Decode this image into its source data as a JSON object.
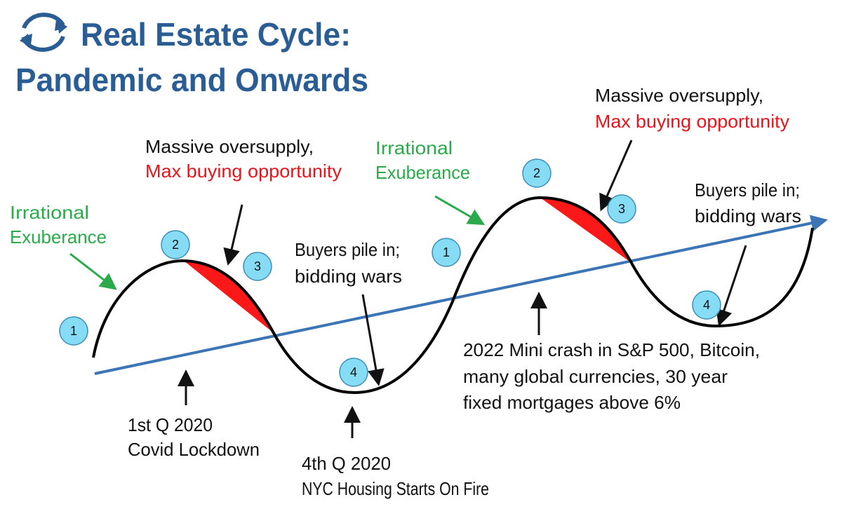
{
  "header": {
    "title": [
      "Real Estate Cycle:",
      "Pandemic and Onwards"
    ]
  },
  "cycles": [
    {
      "exuberance": [
        "Irrational",
        "Exuberance"
      ],
      "oversupply": "Massive oversupply,",
      "opportunity": "Max buying opportunity",
      "buyers": [
        "Buyers pile in;",
        "bidding wars"
      ],
      "markers": [
        "1",
        "2",
        "3",
        "4"
      ]
    },
    {
      "exuberance": [
        "Irrational",
        "Exuberance"
      ],
      "oversupply": "Massive oversupply,",
      "opportunity": "Max buying opportunity",
      "buyers": [
        "Buyers pile in;",
        "bidding wars"
      ],
      "markers": [
        "1",
        "2",
        "3",
        "4"
      ]
    }
  ],
  "events": [
    [
      "1st Q 2020",
      "Covid Lockdown"
    ],
    [
      "4th Q 2020",
      "NYC Housing Starts On Fire"
    ],
    [
      "2022 Mini crash in S&P 500, Bitcoin,",
      "many global currencies, 30 year",
      "fixed mortgages above 6%"
    ]
  ]
}
